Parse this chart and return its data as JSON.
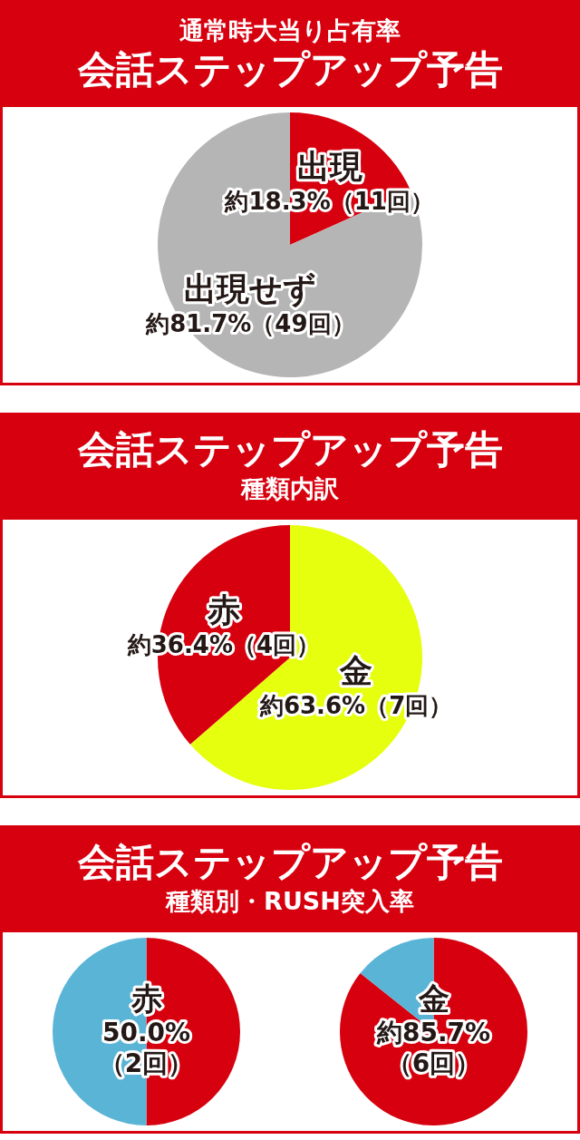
{
  "chart_data": [
    {
      "type": "pie",
      "title": "会話ステップアップ予告",
      "subtitle": "通常時大当り占有率",
      "categories": [
        "出現",
        "出現せず"
      ],
      "values": [
        18.3,
        81.7
      ],
      "colors": [
        "#d7000f",
        "#b5b5b6"
      ],
      "value_labels": [
        "約18.3%（11回）",
        "約81.7%（49回）"
      ]
    },
    {
      "type": "pie",
      "title": "会話ステップアップ予告",
      "subtitle": "種類内訳",
      "categories": [
        "金",
        "赤"
      ],
      "values": [
        63.6,
        36.4
      ],
      "colors": [
        "#e5ff0f",
        "#d7000f"
      ],
      "value_labels": [
        "約63.6%（7回）",
        "約36.4%（4回）"
      ]
    },
    {
      "type": "pie",
      "title": "会話ステップアップ予告",
      "subtitle": "種類別・RUSH突入率",
      "categories": [
        null,
        null
      ],
      "colors": [
        "#d7000f",
        "#5ab4d6"
      ],
      "series": [
        {
          "name": "赤",
          "values": [
            50.0,
            50.0
          ],
          "value_labels": [
            "50.0%（2回）",
            null
          ]
        },
        {
          "name": "金",
          "values": [
            85.7,
            14.3
          ],
          "value_labels": [
            "約85.7%（6回）",
            null
          ]
        }
      ]
    }
  ]
}
